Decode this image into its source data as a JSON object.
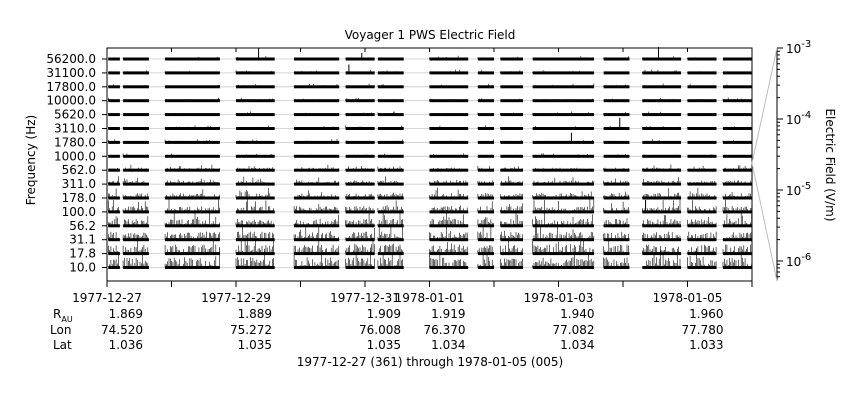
{
  "chart_data": {
    "type": "spectrogram-stackplot",
    "title": "Voyager 1 PWS Electric Field",
    "ylabel": "Frequency (Hz)",
    "y2label": "Electric Field (V/m)",
    "xlabel": "1977-12-27 (361) through 1978-01-05 (005)",
    "x_range_days": [
      0,
      9
    ],
    "channels_hz": [
      "10.0",
      "17.8",
      "31.1",
      "56.2",
      "100.0",
      "178.0",
      "311.0",
      "562.0",
      "1000.0",
      "1780.0",
      "3110.0",
      "5620.0",
      "10000.0",
      "17800.0",
      "31100.0",
      "56200.0"
    ],
    "y2_ticks": [
      {
        "base": "10",
        "exp": "-3"
      },
      {
        "base": "10",
        "exp": "-4"
      },
      {
        "base": "10",
        "exp": "-5"
      },
      {
        "base": "10",
        "exp": "-6"
      }
    ],
    "x_tick_labels": [
      {
        "day": 0,
        "label": "1977-12-27"
      },
      {
        "day": 2,
        "label": "1977-12-29"
      },
      {
        "day": 4,
        "label": "1977-12-31"
      },
      {
        "day": 5,
        "label": "1978-01-01"
      },
      {
        "day": 7,
        "label": "1978-01-03"
      },
      {
        "day": 9,
        "label": "1978-01-05"
      }
    ],
    "ephemeris": {
      "row_labels": {
        "r": "R",
        "r_sub": "AU",
        "lon": "Lon",
        "lat": "Lat"
      },
      "columns": [
        {
          "day": 0,
          "r": "1.869",
          "lon": "74.520",
          "lat": "1.036"
        },
        {
          "day": 2,
          "r": "1.889",
          "lon": "75.272",
          "lat": "1.035"
        },
        {
          "day": 4,
          "r": "1.909",
          "lon": "76.008",
          "lat": "1.035"
        },
        {
          "day": 5,
          "r": "1.919",
          "lon": "76.370",
          "lat": "1.034"
        },
        {
          "day": 7,
          "r": "1.940",
          "lon": "77.082",
          "lat": "1.034"
        },
        {
          "day": 9,
          "r": "1.960",
          "lon": "77.780",
          "lat": "1.033"
        }
      ]
    },
    "data_segments_days": [
      [
        0.02,
        0.2
      ],
      [
        0.25,
        0.65
      ],
      [
        0.9,
        1.75
      ],
      [
        2.0,
        2.6
      ],
      [
        2.9,
        3.6
      ],
      [
        3.7,
        4.15
      ],
      [
        4.2,
        4.6
      ],
      [
        5.0,
        5.6
      ],
      [
        5.75,
        6.0
      ],
      [
        6.1,
        6.45
      ],
      [
        6.6,
        7.55
      ],
      [
        7.7,
        8.1
      ],
      [
        8.3,
        8.9
      ],
      [
        9.0,
        9.45
      ],
      [
        9.55,
        10
      ]
    ],
    "peaks": [
      {
        "day": 2.35,
        "channel": "56200.0",
        "level": 0.9
      },
      {
        "day": 3.75,
        "channel": "31100.0",
        "level": 0.7
      },
      {
        "day": 3.95,
        "channel": "56200.0",
        "level": 0.5
      },
      {
        "day": 7.2,
        "channel": "1780.0",
        "level": 0.8
      },
      {
        "day": 7.95,
        "channel": "3110.0",
        "level": 0.9
      },
      {
        "day": 8.55,
        "channel": "56200.0",
        "level": 1.0
      },
      {
        "day": 8.35,
        "channel": "100.0",
        "level": 1.0
      }
    ]
  }
}
